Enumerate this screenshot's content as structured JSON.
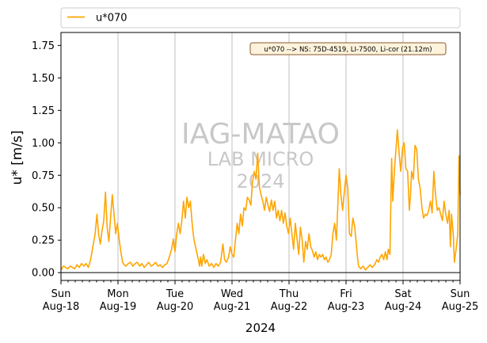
{
  "chart_data": {
    "type": "line",
    "xlabel": "2024",
    "ylabel": "u* [m/s]",
    "ylim": [
      -0.06,
      1.85
    ],
    "xlim": [
      "2024-08-18",
      "2024-08-25"
    ],
    "yticks": [
      0.0,
      0.25,
      0.5,
      0.75,
      1.0,
      1.25,
      1.5,
      1.75
    ],
    "ytick_labels": [
      "0.00",
      "0.25",
      "0.50",
      "0.75",
      "1.00",
      "1.25",
      "1.50",
      "1.75"
    ],
    "xticks": [
      {
        "day": "Sun",
        "date": "Aug-18"
      },
      {
        "day": "Mon",
        "date": "Aug-19"
      },
      {
        "day": "Tue",
        "date": "Aug-20"
      },
      {
        "day": "Wed",
        "date": "Aug-21"
      },
      {
        "day": "Thu",
        "date": "Aug-22"
      },
      {
        "day": "Fri",
        "date": "Aug-23"
      },
      {
        "day": "Sat",
        "date": "Aug-24"
      },
      {
        "day": "Sun",
        "date": "Aug-25"
      }
    ],
    "grid": "vertical",
    "zero_line": true,
    "legend": {
      "placement": "above-top-left",
      "entries": [
        "u*070"
      ]
    },
    "annotation": "u*070 --> NS: 75D-4519, LI-7500, Li-cor (21.12m)",
    "watermark": [
      "IAG-MATAO",
      "LAB MICRO",
      "2024"
    ],
    "colors": {
      "series": "#FFA500",
      "grid": "#b0b0b0",
      "watermark": "#c8c8c8",
      "annotation_bg": "#fdf3dc",
      "annotation_border": "#8b5a2b"
    },
    "series": [
      {
        "name": "u*070",
        "x_unit": "days since Aug-18 00:00",
        "points": [
          [
            0.0,
            0.02
          ],
          [
            0.04,
            0.05
          ],
          [
            0.08,
            0.04
          ],
          [
            0.12,
            0.03
          ],
          [
            0.16,
            0.05
          ],
          [
            0.2,
            0.04
          ],
          [
            0.24,
            0.03
          ],
          [
            0.28,
            0.06
          ],
          [
            0.32,
            0.04
          ],
          [
            0.36,
            0.07
          ],
          [
            0.4,
            0.05
          ],
          [
            0.44,
            0.07
          ],
          [
            0.48,
            0.04
          ],
          [
            0.52,
            0.1
          ],
          [
            0.56,
            0.2
          ],
          [
            0.6,
            0.3
          ],
          [
            0.63,
            0.45
          ],
          [
            0.66,
            0.3
          ],
          [
            0.69,
            0.22
          ],
          [
            0.72,
            0.32
          ],
          [
            0.75,
            0.4
          ],
          [
            0.78,
            0.62
          ],
          [
            0.81,
            0.35
          ],
          [
            0.84,
            0.24
          ],
          [
            0.87,
            0.42
          ],
          [
            0.9,
            0.6
          ],
          [
            0.93,
            0.45
          ],
          [
            0.96,
            0.3
          ],
          [
            0.99,
            0.38
          ],
          [
            1.02,
            0.26
          ],
          [
            1.05,
            0.16
          ],
          [
            1.08,
            0.08
          ],
          [
            1.11,
            0.06
          ],
          [
            1.14,
            0.05
          ],
          [
            1.18,
            0.07
          ],
          [
            1.22,
            0.08
          ],
          [
            1.26,
            0.05
          ],
          [
            1.3,
            0.07
          ],
          [
            1.34,
            0.08
          ],
          [
            1.38,
            0.05
          ],
          [
            1.42,
            0.07
          ],
          [
            1.46,
            0.04
          ],
          [
            1.5,
            0.06
          ],
          [
            1.54,
            0.08
          ],
          [
            1.58,
            0.05
          ],
          [
            1.62,
            0.06
          ],
          [
            1.66,
            0.08
          ],
          [
            1.7,
            0.05
          ],
          [
            1.74,
            0.06
          ],
          [
            1.78,
            0.04
          ],
          [
            1.82,
            0.06
          ],
          [
            1.86,
            0.07
          ],
          [
            1.9,
            0.12
          ],
          [
            1.94,
            0.18
          ],
          [
            1.97,
            0.26
          ],
          [
            2.0,
            0.16
          ],
          [
            2.03,
            0.3
          ],
          [
            2.06,
            0.38
          ],
          [
            2.09,
            0.3
          ],
          [
            2.12,
            0.4
          ],
          [
            2.15,
            0.55
          ],
          [
            2.18,
            0.42
          ],
          [
            2.21,
            0.58
          ],
          [
            2.24,
            0.5
          ],
          [
            2.27,
            0.55
          ],
          [
            2.3,
            0.38
          ],
          [
            2.33,
            0.26
          ],
          [
            2.36,
            0.2
          ],
          [
            2.39,
            0.14
          ],
          [
            2.41,
            0.1
          ],
          [
            2.43,
            0.05
          ],
          [
            2.45,
            0.12
          ],
          [
            2.47,
            0.05
          ],
          [
            2.5,
            0.14
          ],
          [
            2.53,
            0.07
          ],
          [
            2.56,
            0.1
          ],
          [
            2.6,
            0.05
          ],
          [
            2.64,
            0.07
          ],
          [
            2.68,
            0.04
          ],
          [
            2.72,
            0.07
          ],
          [
            2.76,
            0.05
          ],
          [
            2.8,
            0.08
          ],
          [
            2.84,
            0.22
          ],
          [
            2.87,
            0.1
          ],
          [
            2.9,
            0.08
          ],
          [
            2.94,
            0.12
          ],
          [
            2.97,
            0.2
          ],
          [
            3.0,
            0.14
          ],
          [
            3.03,
            0.12
          ],
          [
            3.06,
            0.25
          ],
          [
            3.09,
            0.38
          ],
          [
            3.12,
            0.3
          ],
          [
            3.15,
            0.45
          ],
          [
            3.18,
            0.36
          ],
          [
            3.21,
            0.5
          ],
          [
            3.24,
            0.48
          ],
          [
            3.27,
            0.58
          ],
          [
            3.3,
            0.56
          ],
          [
            3.33,
            0.52
          ],
          [
            3.36,
            0.7
          ],
          [
            3.39,
            0.78
          ],
          [
            3.42,
            0.72
          ],
          [
            3.45,
            0.92
          ],
          [
            3.48,
            0.66
          ],
          [
            3.51,
            0.6
          ],
          [
            3.54,
            0.55
          ],
          [
            3.57,
            0.48
          ],
          [
            3.6,
            0.58
          ],
          [
            3.63,
            0.52
          ],
          [
            3.66,
            0.47
          ],
          [
            3.69,
            0.56
          ],
          [
            3.72,
            0.48
          ],
          [
            3.75,
            0.55
          ],
          [
            3.78,
            0.42
          ],
          [
            3.81,
            0.48
          ],
          [
            3.84,
            0.4
          ],
          [
            3.87,
            0.48
          ],
          [
            3.9,
            0.38
          ],
          [
            3.93,
            0.46
          ],
          [
            3.96,
            0.36
          ],
          [
            3.99,
            0.3
          ],
          [
            4.02,
            0.42
          ],
          [
            4.05,
            0.3
          ],
          [
            4.08,
            0.18
          ],
          [
            4.11,
            0.38
          ],
          [
            4.14,
            0.26
          ],
          [
            4.17,
            0.14
          ],
          [
            4.2,
            0.35
          ],
          [
            4.23,
            0.25
          ],
          [
            4.26,
            0.08
          ],
          [
            4.29,
            0.24
          ],
          [
            4.32,
            0.18
          ],
          [
            4.35,
            0.3
          ],
          [
            4.38,
            0.2
          ],
          [
            4.41,
            0.17
          ],
          [
            4.44,
            0.12
          ],
          [
            4.47,
            0.16
          ],
          [
            4.5,
            0.1
          ],
          [
            4.53,
            0.14
          ],
          [
            4.56,
            0.12
          ],
          [
            4.59,
            0.14
          ],
          [
            4.62,
            0.1
          ],
          [
            4.65,
            0.12
          ],
          [
            4.68,
            0.08
          ],
          [
            4.71,
            0.1
          ],
          [
            4.74,
            0.14
          ],
          [
            4.77,
            0.3
          ],
          [
            4.8,
            0.38
          ],
          [
            4.83,
            0.25
          ],
          [
            4.86,
            0.56
          ],
          [
            4.88,
            0.8
          ],
          [
            4.91,
            0.6
          ],
          [
            4.94,
            0.48
          ],
          [
            4.97,
            0.62
          ],
          [
            5.0,
            0.75
          ],
          [
            5.03,
            0.65
          ],
          [
            5.06,
            0.3
          ],
          [
            5.09,
            0.28
          ],
          [
            5.12,
            0.42
          ],
          [
            5.15,
            0.36
          ],
          [
            5.18,
            0.22
          ],
          [
            5.2,
            0.12
          ],
          [
            5.22,
            0.05
          ],
          [
            5.26,
            0.03
          ],
          [
            5.3,
            0.05
          ],
          [
            5.34,
            0.02
          ],
          [
            5.38,
            0.04
          ],
          [
            5.42,
            0.06
          ],
          [
            5.46,
            0.04
          ],
          [
            5.5,
            0.06
          ],
          [
            5.54,
            0.1
          ],
          [
            5.57,
            0.08
          ],
          [
            5.6,
            0.12
          ],
          [
            5.63,
            0.14
          ],
          [
            5.66,
            0.1
          ],
          [
            5.69,
            0.16
          ],
          [
            5.72,
            0.1
          ],
          [
            5.74,
            0.18
          ],
          [
            5.77,
            0.14
          ],
          [
            5.8,
            0.88
          ],
          [
            5.82,
            0.55
          ],
          [
            5.85,
            0.8
          ],
          [
            5.88,
            0.98
          ],
          [
            5.9,
            1.1
          ],
          [
            5.93,
            0.92
          ],
          [
            5.96,
            0.78
          ],
          [
            5.99,
            0.96
          ],
          [
            6.02,
            1.0
          ],
          [
            6.05,
            0.8
          ],
          [
            6.08,
            0.78
          ],
          [
            6.11,
            0.48
          ],
          [
            6.13,
            0.6
          ],
          [
            6.15,
            0.78
          ],
          [
            6.18,
            0.72
          ],
          [
            6.21,
            0.98
          ],
          [
            6.24,
            0.95
          ],
          [
            6.27,
            0.72
          ],
          [
            6.3,
            0.65
          ],
          [
            6.33,
            0.5
          ],
          [
            6.36,
            0.42
          ],
          [
            6.39,
            0.45
          ],
          [
            6.42,
            0.44
          ],
          [
            6.45,
            0.48
          ],
          [
            6.48,
            0.55
          ],
          [
            6.51,
            0.46
          ],
          [
            6.54,
            0.78
          ],
          [
            6.57,
            0.6
          ],
          [
            6.6,
            0.48
          ],
          [
            6.63,
            0.5
          ],
          [
            6.66,
            0.45
          ],
          [
            6.69,
            0.4
          ],
          [
            6.72,
            0.55
          ],
          [
            6.75,
            0.45
          ],
          [
            6.78,
            0.38
          ],
          [
            6.81,
            0.48
          ],
          [
            6.83,
            0.2
          ],
          [
            6.85,
            0.45
          ],
          [
            6.88,
            0.3
          ],
          [
            6.9,
            0.08
          ],
          [
            6.93,
            0.18
          ],
          [
            6.96,
            0.3
          ],
          [
            6.98,
            0.9
          ],
          [
            7.0,
            0.6
          ]
        ]
      }
    ]
  }
}
